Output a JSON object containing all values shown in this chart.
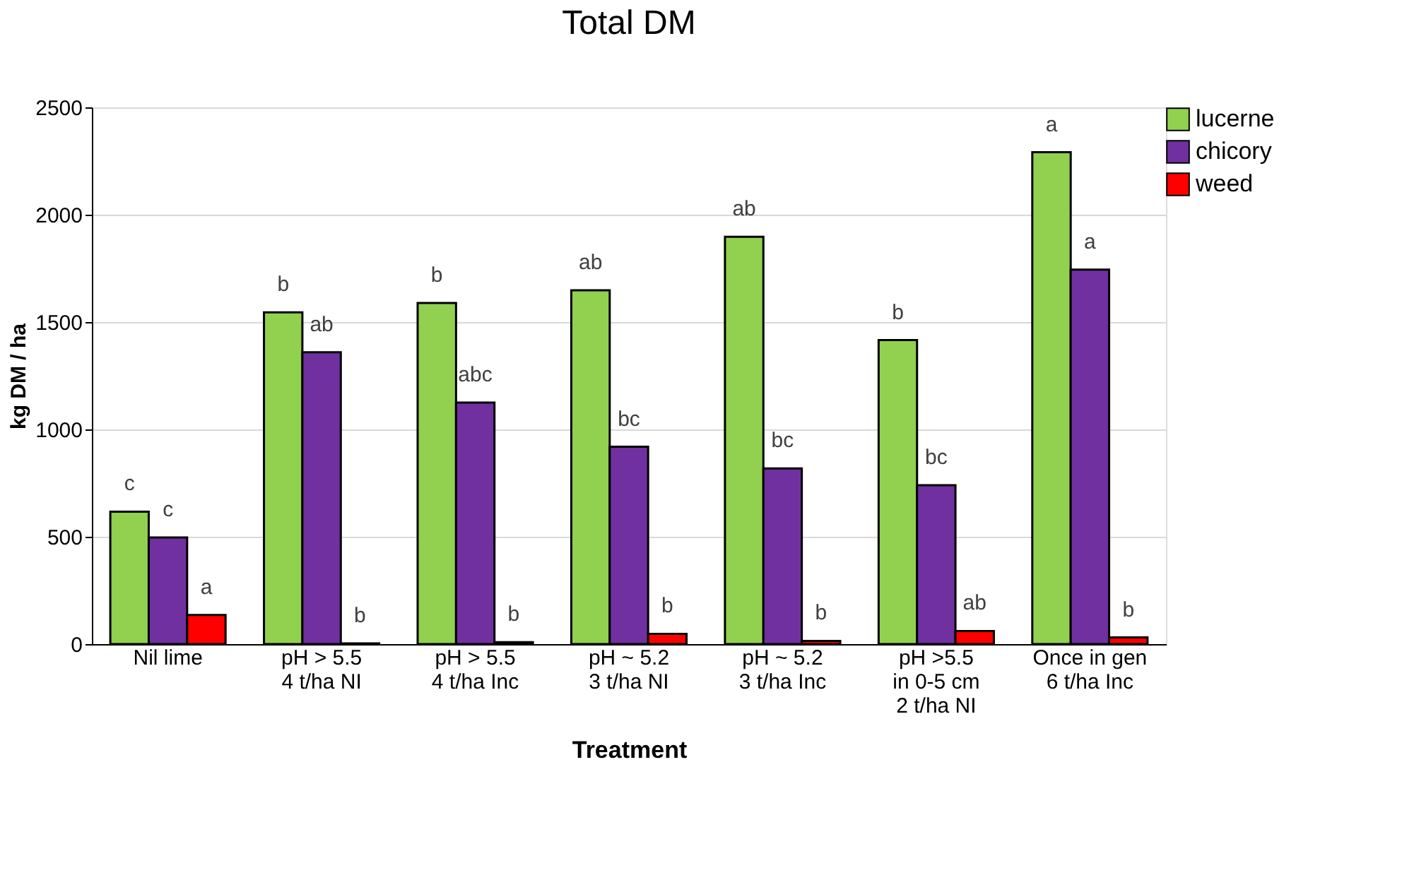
{
  "chart_data": {
    "type": "bar",
    "title": "Total DM",
    "xlabel": "Treatment",
    "ylabel": "kg DM / ha",
    "categories": [
      "Nil lime",
      "pH > 5.5\n4 t/ha NI",
      "pH > 5.5\n4 t/ha Inc",
      "pH ~ 5.2\n3 t/ha NI",
      "pH ~ 5.2\n3 t/ha Inc",
      "pH >5.5\nin 0-5 cm\n2 t/ha NI",
      "Once in gen\n6 t/ha Inc"
    ],
    "series": [
      {
        "name": "lucerne",
        "color": "#92d050",
        "values": [
          617,
          1545,
          1589,
          1648,
          1897,
          1416,
          2291
        ],
        "value_labels": [
          "c",
          "b",
          "b",
          "ab",
          "ab",
          "b",
          "a"
        ]
      },
      {
        "name": "chicory",
        "color": "#7030a0",
        "values": [
          497,
          1359,
          1125,
          919,
          818,
          740,
          1744
        ],
        "value_labels": [
          "c",
          "ab",
          "abc",
          "bc",
          "bc",
          "bc",
          "a"
        ]
      },
      {
        "name": "weed",
        "color": "#ff0000",
        "values": [
          136,
          3,
          9,
          48,
          15,
          61,
          31
        ],
        "value_labels": [
          "a",
          "b",
          "b",
          "b",
          "b",
          "ab",
          "b"
        ]
      }
    ],
    "ylim": [
      0,
      2500
    ],
    "yticks": [
      0,
      500,
      1000,
      1500,
      2000,
      2500
    ],
    "grid": "y",
    "legend": "top right"
  }
}
